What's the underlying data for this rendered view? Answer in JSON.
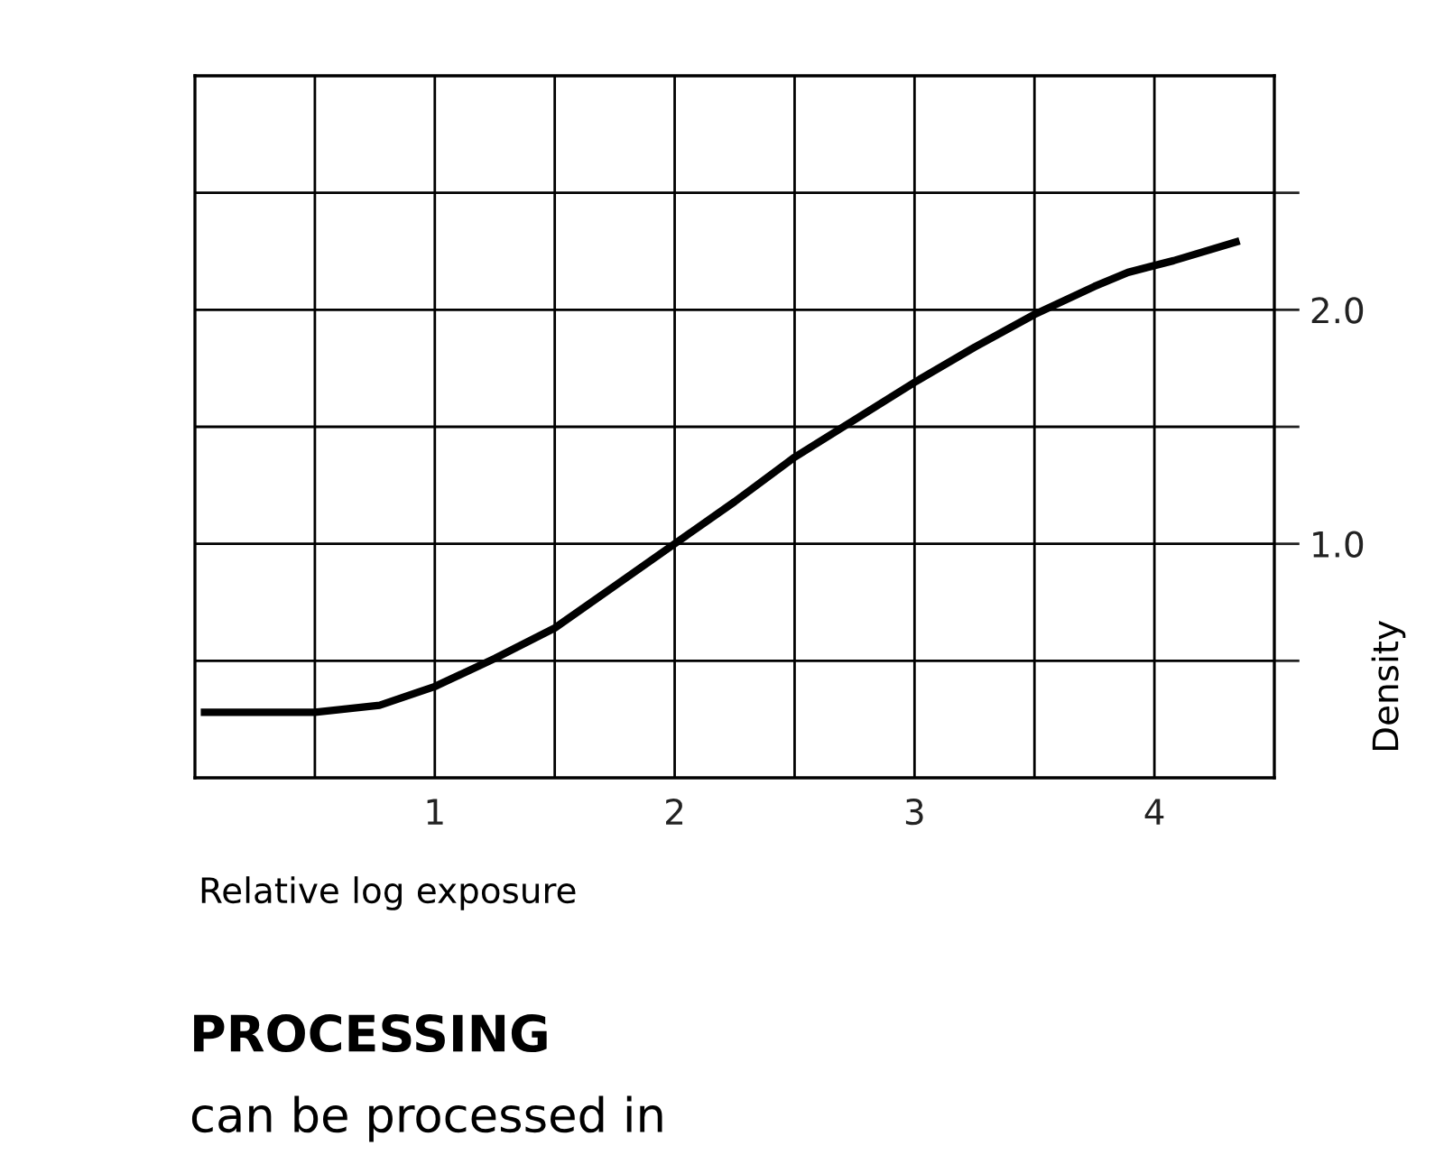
{
  "chart_data": {
    "type": "line",
    "xlabel": "Relative log exposure",
    "ylabel": "Density",
    "x": [
      0.04,
      0.5,
      0.77,
      1.0,
      1.25,
      1.5,
      1.75,
      2.0,
      2.25,
      2.5,
      2.75,
      3.0,
      3.25,
      3.5,
      3.75,
      3.89,
      4.08,
      4.34
    ],
    "series": [
      {
        "color": "#000000",
        "values": [
          0.28,
          0.28,
          0.31,
          0.39,
          0.51,
          0.64,
          0.82,
          1.0,
          1.18,
          1.37,
          1.53,
          1.69,
          1.84,
          1.98,
          2.1,
          2.16,
          2.21,
          2.29
        ]
      }
    ],
    "xlim": [
      0,
      4.5
    ],
    "ylim": [
      0,
      3
    ],
    "xticks": [
      {
        "value": 0.5,
        "label": null
      },
      1,
      {
        "value": 1.5,
        "label": null
      },
      2,
      {
        "value": 2.5,
        "label": null
      },
      3,
      {
        "value": 3.5,
        "label": null
      },
      4
    ],
    "yticks": [
      {
        "value": 0.5,
        "label": null
      },
      {
        "value": 1,
        "label": "1.0"
      },
      {
        "value": 1.5,
        "label": null
      },
      {
        "value": 2,
        "label": "2.0"
      },
      {
        "value": 2.5,
        "label": null
      }
    ],
    "grid": true,
    "marker": "none",
    "line_style": "solid",
    "annotations": [
      "PROCESSING",
      "can be processed in"
    ]
  }
}
